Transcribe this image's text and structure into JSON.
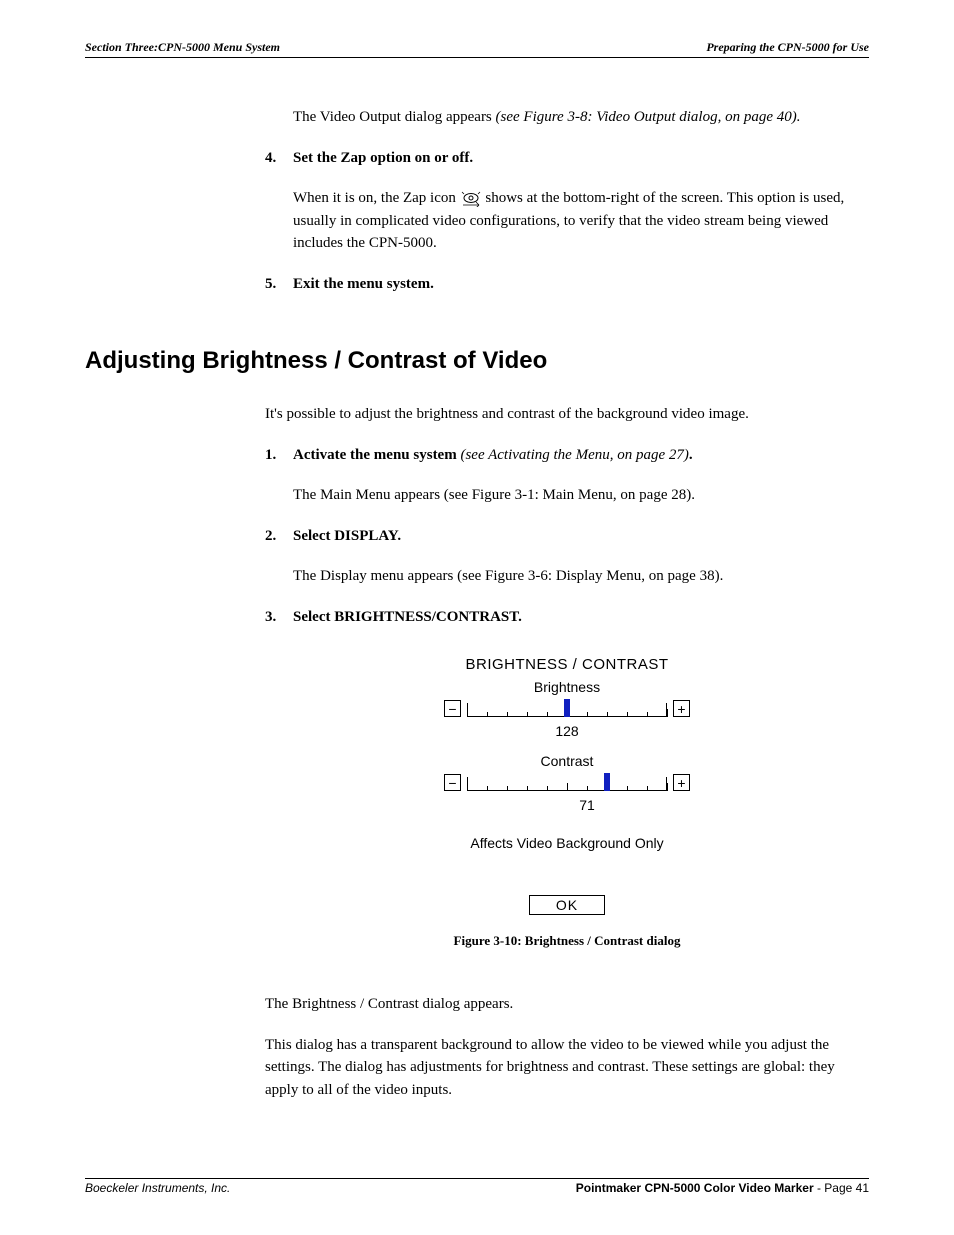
{
  "header": {
    "left": "Section Three:CPN-5000 Menu System",
    "right": "Preparing the CPN-5000 for Use"
  },
  "intro": {
    "p1_a": "The Video Output dialog appears ",
    "p1_ref": "(see Figure 3-8: Video Output dialog, on page 40).",
    "step4_num": "4.",
    "step4_text": "Set the Zap option on or off.",
    "step4_body_a": "When it is on, the Zap icon ",
    "step4_body_b": " shows at the bottom-right of the screen. This option is used, usually in complicated video configurations, to verify that the video stream being viewed includes the CPN-5000.",
    "step5_num": "5.",
    "step5_text": "Exit the menu system."
  },
  "section_title": "Adjusting Brightness / Contrast of Video",
  "adjust": {
    "intro": "It's possible to adjust the brightness and contrast of the background video image.",
    "s1_num": "1.",
    "s1_text": "Activate the menu system ",
    "s1_ref": "(see Activating the Menu, on page 27)",
    "s1_dot": ".",
    "s1_body_a": "The Main Menu appears ",
    "s1_body_ref": "(see Figure 3-1: Main Menu, on page 28).",
    "s2_num": "2.",
    "s2_text": "Select DISPLAY.",
    "s2_body_a": "The Display menu appears ",
    "s2_body_ref": "(see Figure 3-6: Display Menu, on page 38)",
    "s2_body_dot": ".",
    "s3_num": "3.",
    "s3_text": "Select BRIGHTNESS/CONTRAST."
  },
  "dialog": {
    "title": "BRIGHTNESS / CONTRAST",
    "brightness_label": "Brightness",
    "brightness_value": "128",
    "brightness_pos_pct": 50,
    "contrast_label": "Contrast",
    "contrast_value": "71",
    "contrast_pos_pct": 70,
    "minus": "−",
    "plus": "+",
    "note": "Affects Video Background Only",
    "ok": "OK",
    "thumb_color": "#1020c0",
    "ticks": [
      0,
      10,
      20,
      30,
      40,
      50,
      60,
      70,
      80,
      90,
      100
    ]
  },
  "figure_caption": "Figure 3-10:  Brightness / Contrast dialog",
  "post": {
    "p1": "The Brightness / Contrast dialog appears.",
    "p2": "This dialog has a transparent background to allow the video to be viewed while you adjust the settings. The dialog has adjustments for brightness and contrast. These settings are global: they apply to all of the video inputs."
  },
  "footer": {
    "left": "Boeckeler Instruments, Inc.",
    "right_bold": "Pointmaker CPN-5000 Color Video Marker",
    "right_rest": " - Page 41"
  }
}
